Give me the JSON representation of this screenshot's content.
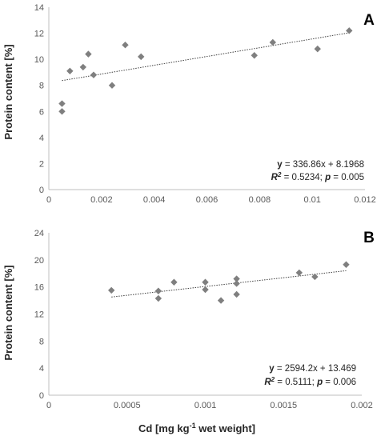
{
  "chart_data": [
    {
      "type": "scatter",
      "panel_label": "A",
      "ylabel": "Protein content [%]",
      "xlabel": "",
      "xlim": [
        0,
        0.012
      ],
      "ylim": [
        0,
        14
      ],
      "x_ticks": [
        "0",
        "0.002",
        "0.004",
        "0.006",
        "0.008",
        "0.01",
        "0.012"
      ],
      "x_tick_values": [
        0,
        0.002,
        0.004,
        0.006,
        0.008,
        0.01,
        0.012
      ],
      "y_ticks": [
        "0",
        "2",
        "4",
        "6",
        "8",
        "10",
        "12",
        "14"
      ],
      "y_tick_values": [
        0,
        2,
        4,
        6,
        8,
        10,
        12,
        14
      ],
      "grid": false,
      "marker_color": "#7f7f7f",
      "points": [
        {
          "x": 0.0005,
          "y": 6.6
        },
        {
          "x": 0.0005,
          "y": 6.0
        },
        {
          "x": 0.0008,
          "y": 9.1
        },
        {
          "x": 0.0013,
          "y": 9.4
        },
        {
          "x": 0.0015,
          "y": 10.4
        },
        {
          "x": 0.0017,
          "y": 8.8
        },
        {
          "x": 0.0024,
          "y": 8.0
        },
        {
          "x": 0.0029,
          "y": 11.1
        },
        {
          "x": 0.0035,
          "y": 10.2
        },
        {
          "x": 0.0078,
          "y": 10.3
        },
        {
          "x": 0.0085,
          "y": 11.3
        },
        {
          "x": 0.0102,
          "y": 10.8
        },
        {
          "x": 0.0114,
          "y": 12.2
        }
      ],
      "trendline": {
        "slope": 336.86,
        "intercept": 8.1968,
        "x_range": [
          0.0005,
          0.0114
        ]
      },
      "equation": {
        "y_label": "y",
        "y_value": " = 336.86x + 8.1968",
        "r2_label": "R",
        "r2_sup": "2",
        "r2_value": " = 0.5234; ",
        "p_label": "p",
        "p_value": " = 0.005"
      }
    },
    {
      "type": "scatter",
      "panel_label": "B",
      "ylabel": "Protein content [%]",
      "xlabel": "Cd [mg kg-1 wet weight]",
      "xlabel_parts": {
        "before": "Cd [mg kg",
        "sup": "-1",
        "after": " wet weight]"
      },
      "xlim": [
        0,
        0.002
      ],
      "ylim": [
        0,
        24
      ],
      "x_ticks": [
        "0",
        "0.0005",
        "0.001",
        "0.0015",
        "0.002"
      ],
      "x_tick_values": [
        0,
        0.0005,
        0.001,
        0.0015,
        0.002
      ],
      "y_ticks": [
        "0",
        "4",
        "8",
        "12",
        "16",
        "20",
        "24"
      ],
      "y_tick_values": [
        0,
        4,
        8,
        12,
        16,
        20,
        24
      ],
      "grid": false,
      "marker_color": "#7f7f7f",
      "points": [
        {
          "x": 0.0004,
          "y": 15.5
        },
        {
          "x": 0.0007,
          "y": 15.4
        },
        {
          "x": 0.0007,
          "y": 14.3
        },
        {
          "x": 0.0008,
          "y": 16.7
        },
        {
          "x": 0.001,
          "y": 16.7
        },
        {
          "x": 0.001,
          "y": 15.6
        },
        {
          "x": 0.0011,
          "y": 14.0
        },
        {
          "x": 0.0012,
          "y": 17.2
        },
        {
          "x": 0.0012,
          "y": 16.5
        },
        {
          "x": 0.0012,
          "y": 14.9
        },
        {
          "x": 0.0016,
          "y": 18.1
        },
        {
          "x": 0.0017,
          "y": 17.5
        },
        {
          "x": 0.0019,
          "y": 19.3
        }
      ],
      "trendline": {
        "slope": 2594.2,
        "intercept": 13.469,
        "x_range": [
          0.0004,
          0.0019
        ]
      },
      "equation": {
        "y_label": "y",
        "y_value": " = 2594.2x + 13.469",
        "r2_label": "R",
        "r2_sup": "2",
        "r2_value": " = 0.5111; ",
        "p_label": "p",
        "p_value": " = 0.006"
      }
    }
  ]
}
